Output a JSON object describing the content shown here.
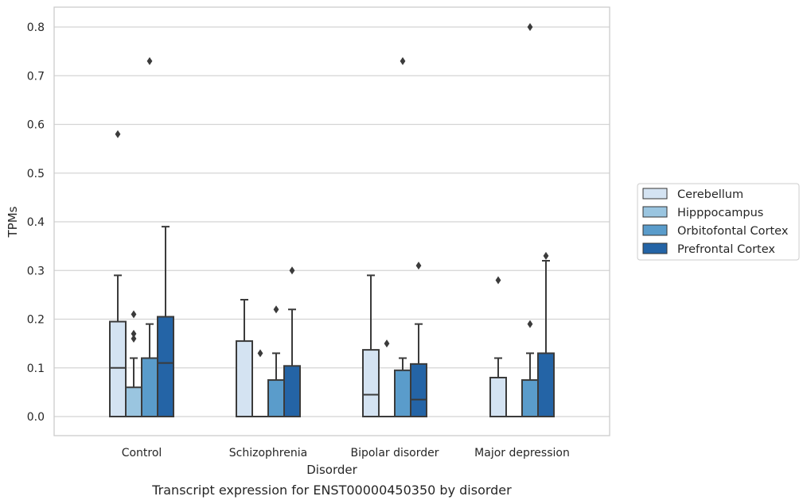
{
  "caption": "Transcript expression for ENST00000450350 by disorder",
  "chart_data": {
    "type": "box",
    "title": "",
    "xlabel": "Disorder",
    "ylabel": "TPMs",
    "ylim": [
      -0.04,
      0.84
    ],
    "yticks": [
      "0.0",
      "0.1",
      "0.2",
      "0.3",
      "0.4",
      "0.5",
      "0.6",
      "0.7",
      "0.8"
    ],
    "grid": "horizontal",
    "legend_position": "right",
    "categories": [
      "Control",
      "Schizophrenia",
      "Bipolar disorder",
      "Major depression"
    ],
    "series": [
      {
        "name": "Cerebellum",
        "color": "#d4e3f2",
        "boxes": [
          {
            "q1": 0.0,
            "median": 0.1,
            "q3": 0.195,
            "whisker_low": 0.0,
            "whisker_high": 0.29,
            "outliers": [
              0.58
            ]
          },
          {
            "q1": 0.0,
            "median": 0.0,
            "q3": 0.155,
            "whisker_low": 0.0,
            "whisker_high": 0.24,
            "outliers": []
          },
          {
            "q1": 0.0,
            "median": 0.045,
            "q3": 0.137,
            "whisker_low": 0.0,
            "whisker_high": 0.29,
            "outliers": []
          },
          {
            "q1": 0.0,
            "median": 0.0,
            "q3": 0.08,
            "whisker_low": 0.0,
            "whisker_high": 0.12,
            "outliers": [
              0.28
            ]
          }
        ]
      },
      {
        "name": "Hipppocampus",
        "color": "#9ac5e0",
        "boxes": [
          {
            "q1": 0.0,
            "median": 0.0,
            "q3": 0.06,
            "whisker_low": 0.0,
            "whisker_high": 0.12,
            "outliers": [
              0.16,
              0.17,
              0.21
            ]
          },
          {
            "q1": 0.0,
            "median": 0.0,
            "q3": 0.0,
            "whisker_low": 0.0,
            "whisker_high": 0.0,
            "outliers": [
              0.13
            ]
          },
          {
            "q1": 0.0,
            "median": 0.0,
            "q3": 0.0,
            "whisker_low": 0.0,
            "whisker_high": 0.0,
            "outliers": [
              0.15
            ]
          },
          {
            "q1": 0.0,
            "median": 0.0,
            "q3": 0.0,
            "whisker_low": 0.0,
            "whisker_high": 0.0,
            "outliers": []
          }
        ]
      },
      {
        "name": "Orbitofontal Cortex",
        "color": "#5a9ccb",
        "boxes": [
          {
            "q1": 0.0,
            "median": 0.0,
            "q3": 0.12,
            "whisker_low": 0.0,
            "whisker_high": 0.19,
            "outliers": [
              0.73
            ]
          },
          {
            "q1": 0.0,
            "median": 0.0,
            "q3": 0.075,
            "whisker_low": 0.0,
            "whisker_high": 0.13,
            "outliers": [
              0.22
            ]
          },
          {
            "q1": 0.0,
            "median": 0.0,
            "q3": 0.095,
            "whisker_low": 0.0,
            "whisker_high": 0.12,
            "outliers": [
              0.73
            ]
          },
          {
            "q1": 0.0,
            "median": 0.0,
            "q3": 0.075,
            "whisker_low": 0.0,
            "whisker_high": 0.13,
            "outliers": [
              0.19,
              0.8
            ]
          }
        ]
      },
      {
        "name": "Prefrontal Cortex",
        "color": "#2464a6",
        "boxes": [
          {
            "q1": 0.0,
            "median": 0.11,
            "q3": 0.205,
            "whisker_low": 0.0,
            "whisker_high": 0.39,
            "outliers": []
          },
          {
            "q1": 0.0,
            "median": 0.0,
            "q3": 0.104,
            "whisker_low": 0.0,
            "whisker_high": 0.22,
            "outliers": [
              0.3
            ]
          },
          {
            "q1": 0.0,
            "median": 0.035,
            "q3": 0.108,
            "whisker_low": 0.0,
            "whisker_high": 0.19,
            "outliers": [
              0.31
            ]
          },
          {
            "q1": 0.0,
            "median": 0.0,
            "q3": 0.13,
            "whisker_low": 0.0,
            "whisker_high": 0.32,
            "outliers": [
              0.33
            ]
          }
        ]
      }
    ]
  }
}
